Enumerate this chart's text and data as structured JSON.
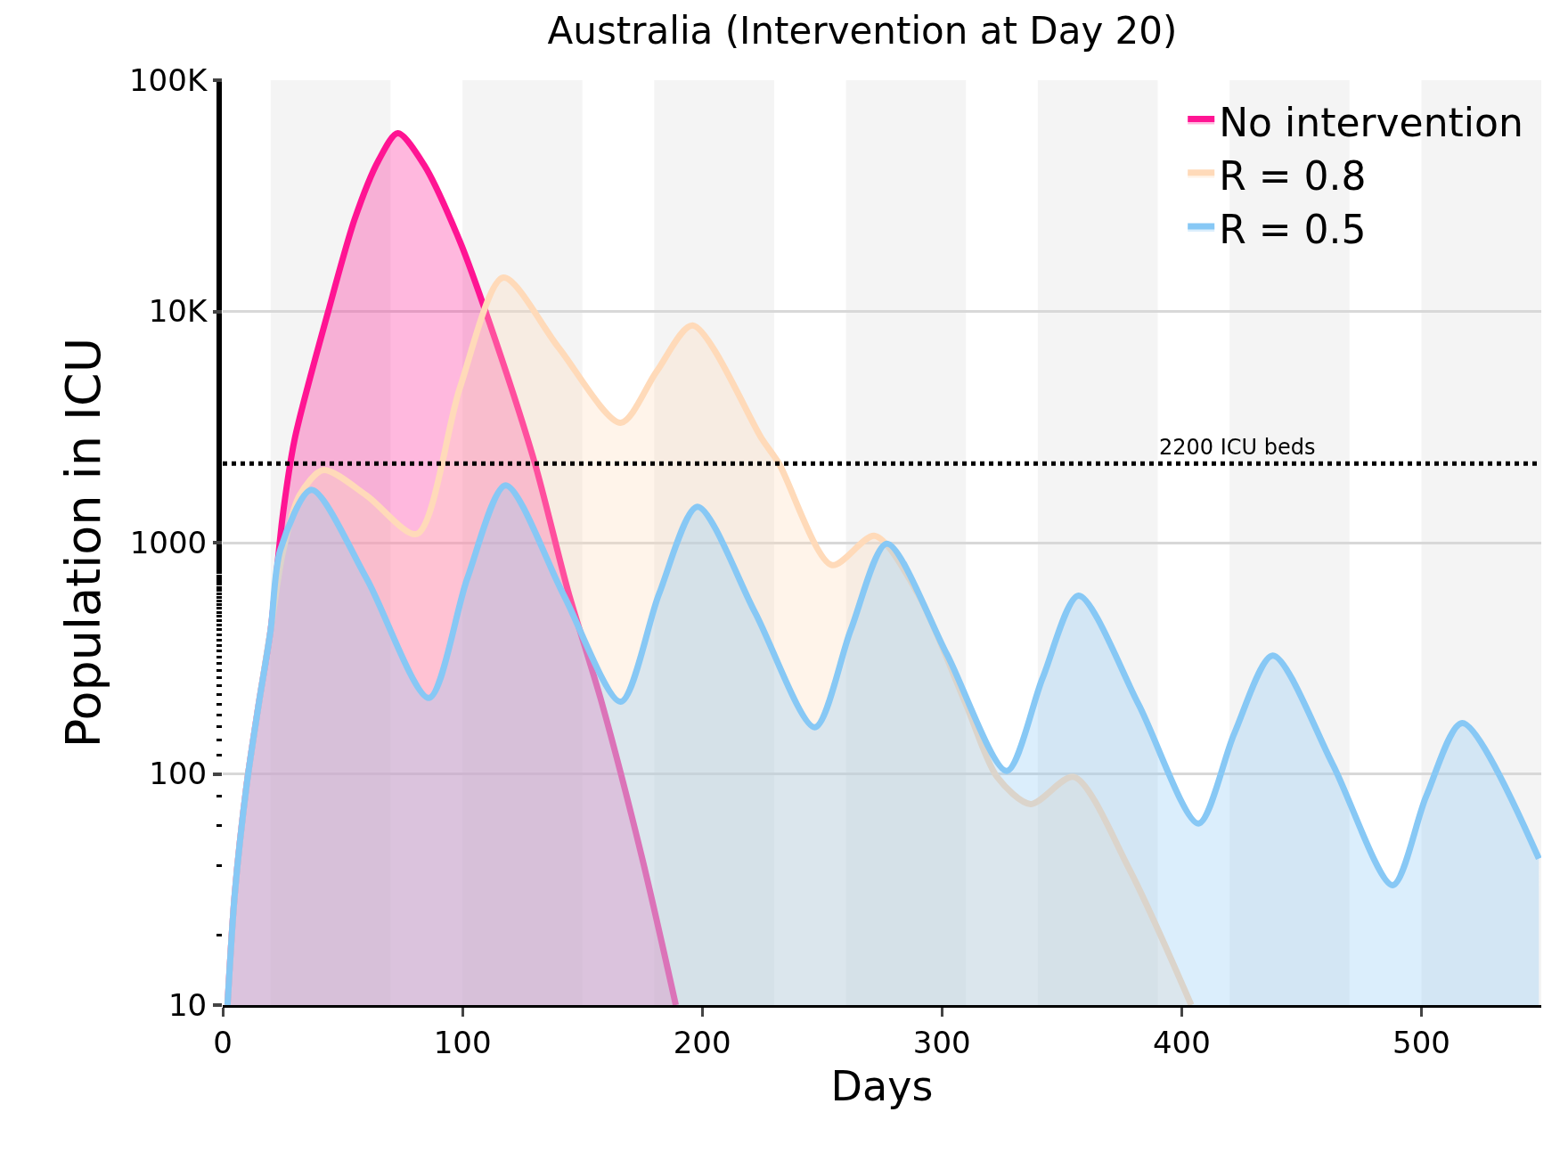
{
  "chart_data": {
    "type": "area",
    "title": "Australia (Intervention at Day 20)",
    "xlabel": "Days",
    "ylabel": "Population in ICU",
    "log": "y",
    "xlim": [
      0,
      550
    ],
    "xticks": [
      0,
      100,
      200,
      300,
      400,
      500
    ],
    "ylim": [
      10,
      100000
    ],
    "yticks": [
      10,
      100,
      1000,
      {
        "value": 10000,
        "label": "10K"
      },
      {
        "value": 100000,
        "label": "100K"
      }
    ],
    "grid": "y",
    "legend": "top right",
    "line_style": "solid",
    "ref_lines": [
      {
        "axis": "y",
        "value": 2200,
        "label": "2200 ICU beds",
        "color": "#000000",
        "line_style": "dotted"
      }
    ],
    "bands": [
      {
        "axis": "x",
        "from": 20,
        "to": 70,
        "color": "#f4f4f4"
      },
      {
        "axis": "x",
        "from": 100,
        "to": 150,
        "color": "#f4f4f4"
      },
      {
        "axis": "x",
        "from": 180,
        "to": 230,
        "color": "#f4f4f4"
      },
      {
        "axis": "x",
        "from": 260,
        "to": 310,
        "color": "#f4f4f4"
      },
      {
        "axis": "x",
        "from": 340,
        "to": 390,
        "color": "#f4f4f4"
      },
      {
        "axis": "x",
        "from": 420,
        "to": 470,
        "color": "#f4f4f4"
      },
      {
        "axis": "x",
        "from": 500,
        "to": 550,
        "color": "#f4f4f4"
      }
    ],
    "series": [
      {
        "name": "No intervention",
        "color": "#ff1493",
        "x": [
          2,
          5,
          10,
          15,
          20,
          25,
          30,
          44,
          55,
          65,
          73,
          84,
          99,
          111,
          130,
          144,
          158,
          175,
          189
        ],
        "values": [
          10,
          30,
          90,
          200,
          420,
          1300,
          2800,
          10000,
          25000,
          45000,
          59000,
          43000,
          20000,
          9100,
          2240,
          620,
          205,
          43,
          10
        ]
      },
      {
        "name": "R = 0.8",
        "color": "#ffdab9",
        "x": [
          2,
          5,
          10,
          15,
          20,
          25,
          32,
          42,
          60,
          81,
          99,
          117,
          140,
          166,
          181,
          196,
          225,
          232,
          254,
          272,
          290,
          310,
          323,
          337,
          355,
          378,
          404
        ],
        "values": [
          10,
          30,
          90,
          200,
          420,
          900,
          1600,
          2060,
          1600,
          1090,
          4700,
          14000,
          7000,
          3300,
          5500,
          8700,
          2800,
          2200,
          800,
          1070,
          600,
          200,
          97,
          74,
          97,
          39,
          10
        ]
      },
      {
        "name": "R = 0.5",
        "color": "#87c8f5",
        "x": [
          2,
          5,
          10,
          15,
          20,
          24,
          37,
          60,
          86,
          102,
          118,
          142,
          166,
          182,
          198,
          222,
          247,
          262,
          277,
          302,
          327,
          342,
          357,
          382,
          407,
          422,
          438,
          463,
          488,
          502,
          517,
          549
        ],
        "values": [
          10,
          30,
          90,
          200,
          420,
          930,
          1690,
          700,
          213,
          700,
          1770,
          600,
          205,
          600,
          1430,
          500,
          159,
          420,
          990,
          330,
          103,
          260,
          590,
          200,
          61,
          150,
          325,
          110,
          33,
          80,
          166,
          43
        ]
      }
    ]
  }
}
